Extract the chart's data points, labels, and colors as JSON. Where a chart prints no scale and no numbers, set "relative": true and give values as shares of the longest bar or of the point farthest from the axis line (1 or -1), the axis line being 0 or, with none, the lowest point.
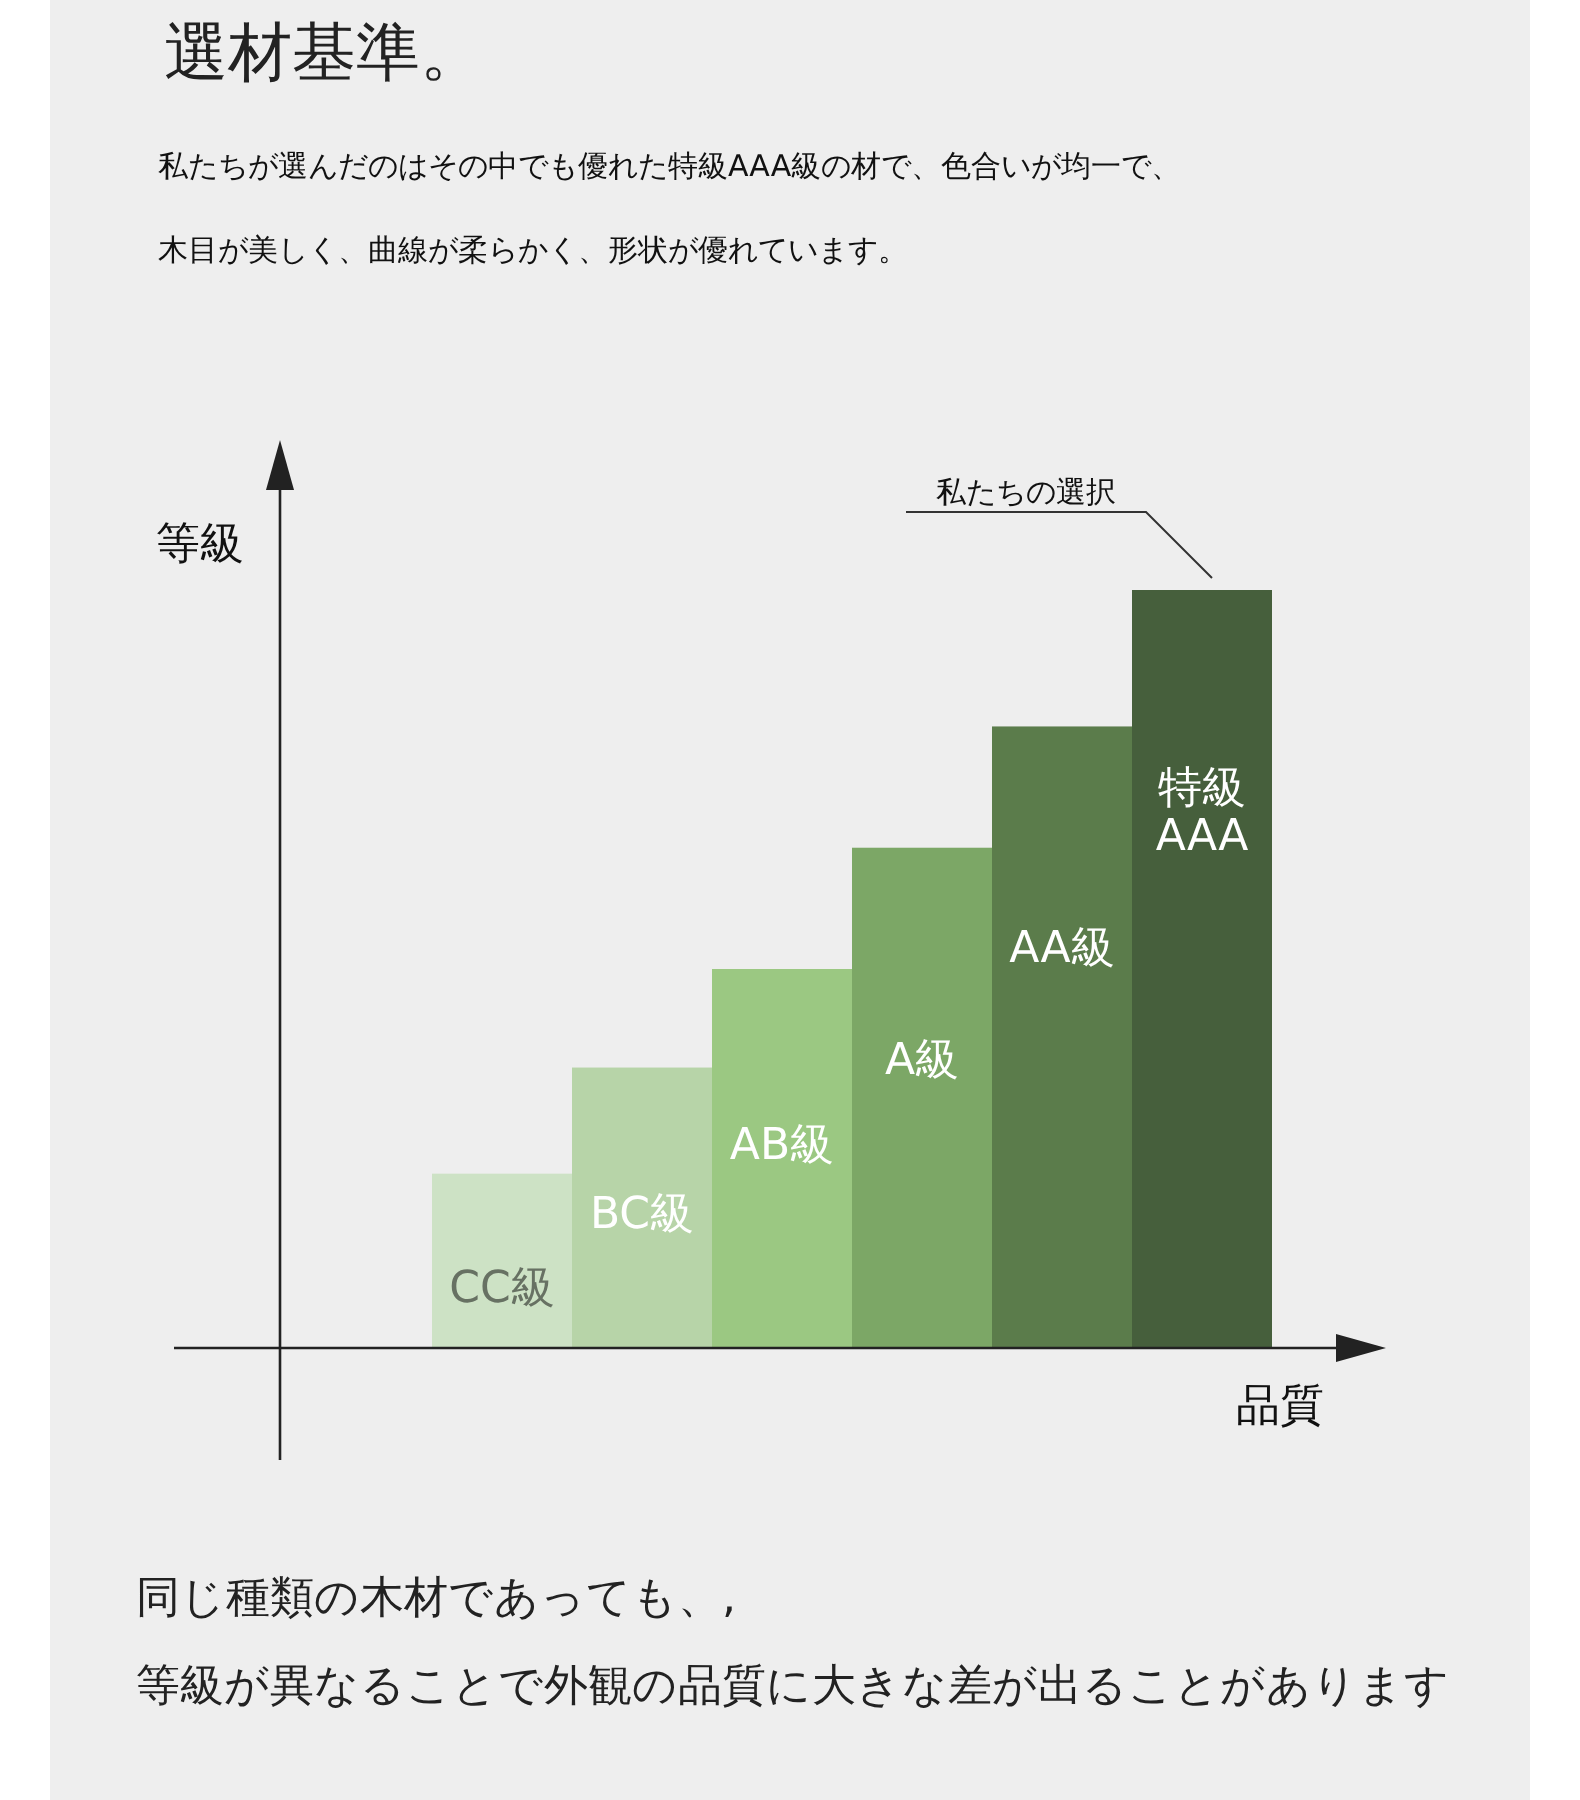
{
  "chart_data": {
    "type": "bar",
    "title": "選材基準。",
    "subtitle": "私たちが選んだのはその中でも優れた特級AAA級の材で、色合いが均一で、木目が美しく、曲線が柔らかく、形状が優れています。",
    "xlabel": "品質",
    "ylabel": "等級",
    "relative": true,
    "categories": [
      "CC級",
      "BC級",
      "AB級",
      "A級",
      "AA級",
      "特級AAA"
    ],
    "values": [
      0.23,
      0.37,
      0.5,
      0.66,
      0.82,
      1
    ],
    "colors": [
      "#cde2c5",
      "#b7d4a8",
      "#9bc882",
      "#7ca766",
      "#5b7c4b",
      "#465f3c"
    ],
    "annotations": [
      {
        "text": "私たちの選択",
        "x": "特級AAA",
        "y": 1
      },
      "同じ種類の木材であっても、,",
      "等級が異なることで外観の品質に大きな差が出ることがあります"
    ]
  }
}
